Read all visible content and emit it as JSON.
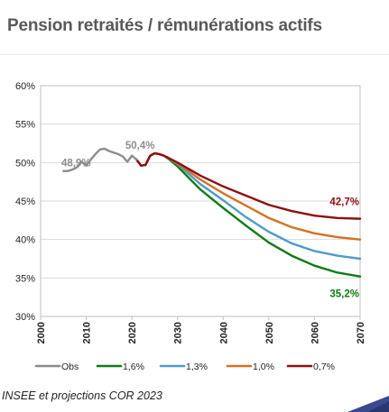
{
  "header": {
    "title": "Pension retraités / rémunérations actifs"
  },
  "footer": {
    "source": "INSEE et projections COR 2023"
  },
  "chart_data": {
    "type": "line",
    "title": "Pension retraités / rémunérations actifs",
    "xlabel": "",
    "ylabel": "",
    "xlim": [
      2000,
      2070
    ],
    "ylim": [
      30,
      60
    ],
    "x_ticks": [
      "2000",
      "2010",
      "2020",
      "2030",
      "2040",
      "2050",
      "2060",
      "2070"
    ],
    "y_ticks": [
      "30%",
      "35%",
      "40%",
      "45%",
      "50%",
      "55%",
      "60%"
    ],
    "grid": true,
    "legend_position": "bottom",
    "series": [
      {
        "name": "Obs",
        "color": "#8c8c8c",
        "x": [
          2005,
          2006,
          2007,
          2008,
          2009,
          2010,
          2011,
          2012,
          2013,
          2014,
          2015,
          2016,
          2017,
          2018,
          2019,
          2020,
          2021
        ],
        "y": [
          48.9,
          48.9,
          49.1,
          49.4,
          50.1,
          49.6,
          50.4,
          51.1,
          51.7,
          51.8,
          51.5,
          51.3,
          51.1,
          50.8,
          50.1,
          50.9,
          50.4
        ]
      },
      {
        "name": "1,6%",
        "color": "#0f7b13",
        "x": [
          2021,
          2022,
          2023,
          2024,
          2025,
          2026,
          2027,
          2028,
          2030,
          2035,
          2040,
          2045,
          2050,
          2055,
          2060,
          2065,
          2070
        ],
        "y": [
          50.4,
          49.6,
          49.7,
          50.9,
          51.2,
          51.1,
          50.9,
          50.5,
          49.5,
          46.5,
          44.1,
          41.8,
          39.6,
          37.9,
          36.6,
          35.7,
          35.2
        ]
      },
      {
        "name": "1,3%",
        "color": "#4d9bcb",
        "x": [
          2021,
          2022,
          2023,
          2024,
          2025,
          2026,
          2027,
          2028,
          2030,
          2035,
          2040,
          2045,
          2050,
          2055,
          2060,
          2065,
          2070
        ],
        "y": [
          50.4,
          49.6,
          49.7,
          50.9,
          51.2,
          51.1,
          50.9,
          50.6,
          49.8,
          47.2,
          45.1,
          42.9,
          41.0,
          39.5,
          38.5,
          37.9,
          37.5
        ]
      },
      {
        "name": "1,0%",
        "color": "#d4711f",
        "x": [
          2021,
          2022,
          2023,
          2024,
          2025,
          2026,
          2027,
          2028,
          2030,
          2035,
          2040,
          2045,
          2050,
          2055,
          2060,
          2065,
          2070
        ],
        "y": [
          50.4,
          49.6,
          49.7,
          50.9,
          51.2,
          51.1,
          50.9,
          50.6,
          49.9,
          47.8,
          46.0,
          44.4,
          42.8,
          41.6,
          40.8,
          40.3,
          40.0
        ]
      },
      {
        "name": "0,7%",
        "color": "#8e0f0f",
        "x": [
          2021,
          2022,
          2023,
          2024,
          2025,
          2026,
          2027,
          2028,
          2030,
          2035,
          2040,
          2045,
          2050,
          2055,
          2060,
          2065,
          2070
        ],
        "y": [
          50.4,
          49.6,
          49.7,
          50.9,
          51.2,
          51.1,
          50.9,
          50.6,
          50.0,
          48.3,
          46.9,
          45.7,
          44.5,
          43.7,
          43.1,
          42.8,
          42.7
        ]
      }
    ],
    "annotations": [
      {
        "text": "48,9%",
        "x": 2005,
        "y": 48.9,
        "color": "#8c8c8c"
      },
      {
        "text": "50,4%",
        "x": 2021,
        "y": 50.4,
        "color": "#8c8c8c"
      },
      {
        "text": "42,7%",
        "x": 2070,
        "y": 42.7,
        "color": "#8e0f0f"
      },
      {
        "text": "35,2%",
        "x": 2070,
        "y": 35.2,
        "color": "#0f7b13"
      }
    ]
  }
}
